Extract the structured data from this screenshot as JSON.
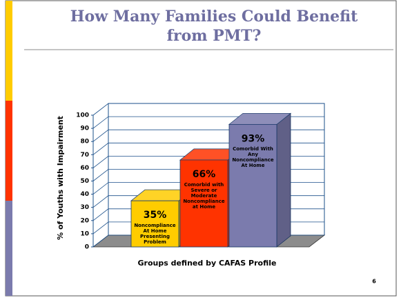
{
  "title": "How Many Families Could Benefit from PMT?",
  "page_number": "6",
  "chart_data": {
    "type": "bar",
    "categories": [
      "Noncompliance At Home Presenting Problem",
      "Comorbid with Severe or Moderate Noncompliance at Home",
      "Comorbid With Any Noncompliance At Home"
    ],
    "values": [
      35,
      66,
      93
    ],
    "value_labels": [
      "35%",
      "66%",
      "93%"
    ],
    "colors": [
      "#ffcc00",
      "#ff3300",
      "#7b7bad"
    ],
    "y_label": "% of Youths with Impairment",
    "x_label": "Groups defined by CAFAS Profile",
    "ylim": [
      0,
      100
    ],
    "yticks": [
      0,
      10,
      20,
      30,
      40,
      50,
      60,
      70,
      80,
      90,
      100
    ],
    "grid": true
  }
}
